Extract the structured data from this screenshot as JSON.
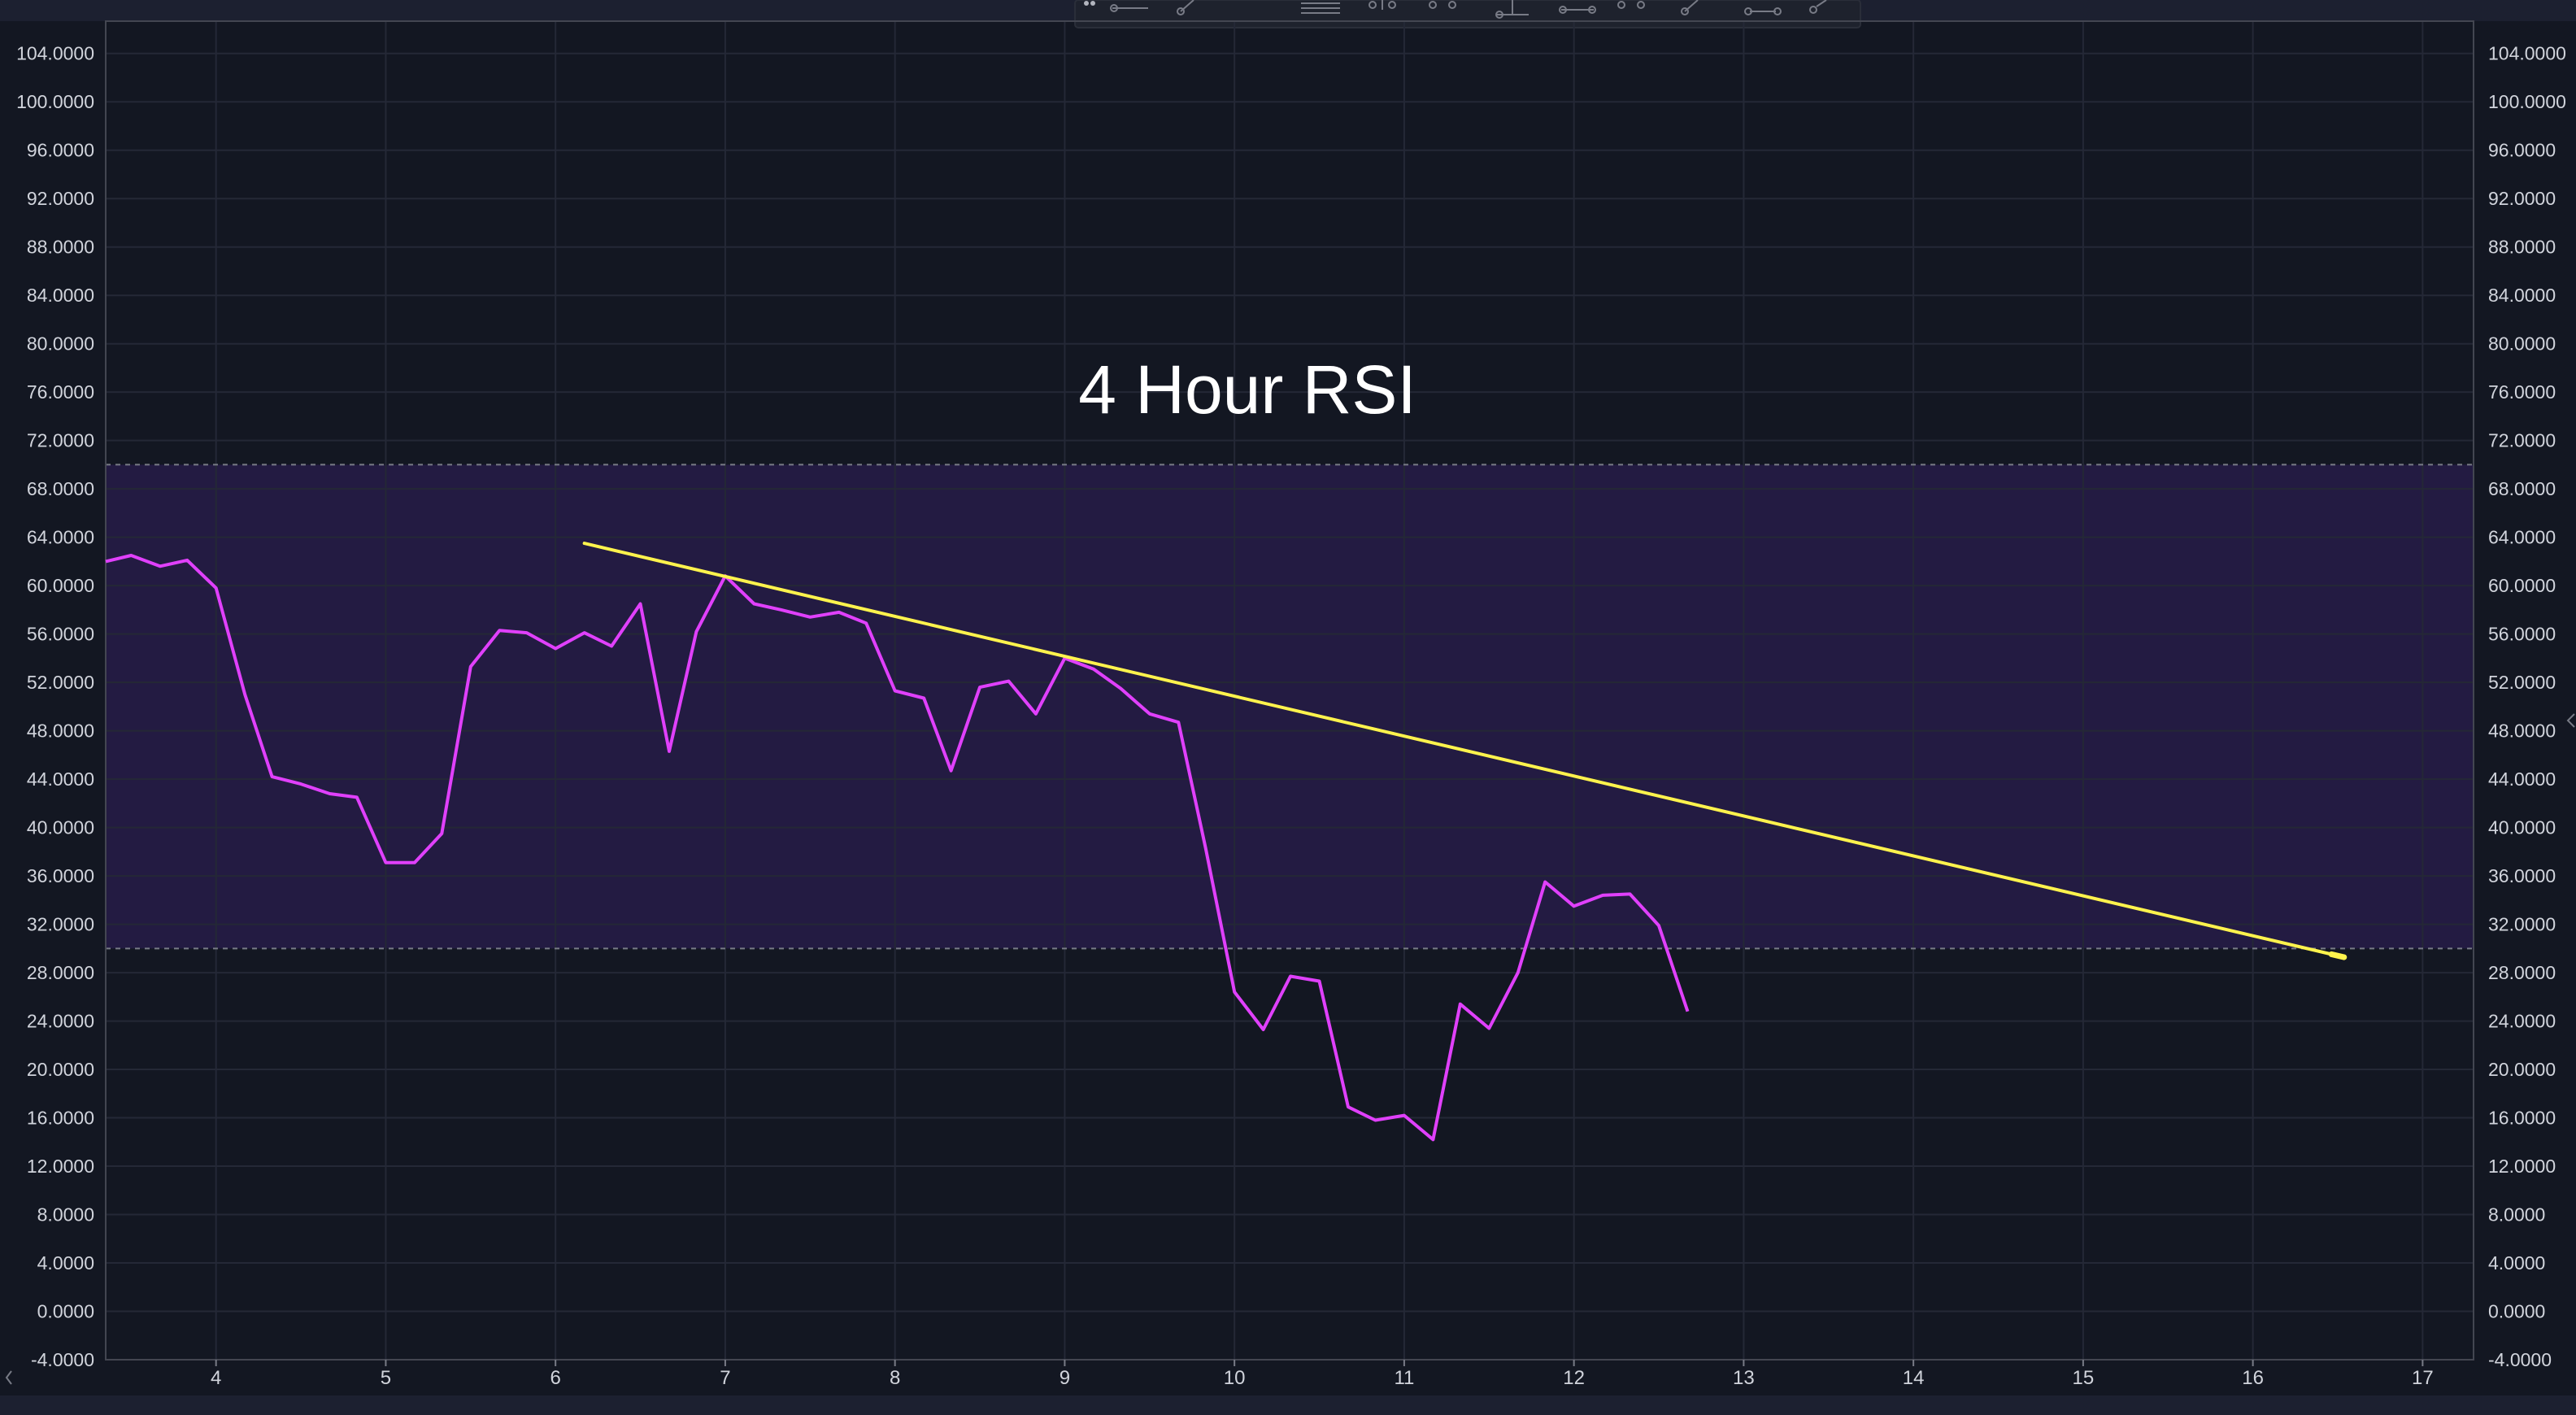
{
  "chart_data": {
    "type": "line",
    "title": "4 Hour RSI",
    "xlabel": "",
    "ylabel": "",
    "xlim": [
      3.35,
      17.3
    ],
    "ylim": [
      -4,
      106
    ],
    "x_ticks": [
      4,
      5,
      6,
      7,
      8,
      9,
      10,
      11,
      12,
      13,
      14,
      15,
      16,
      17
    ],
    "y_ticks": [
      -4,
      0,
      4,
      8,
      12,
      16,
      20,
      24,
      28,
      32,
      36,
      40,
      44,
      48,
      52,
      56,
      60,
      64,
      68,
      72,
      76,
      80,
      84,
      88,
      92,
      96,
      100,
      104
    ],
    "y_tick_labels": [
      "-4.0000",
      "0.0000",
      "4.0000",
      "8.0000",
      "12.0000",
      "16.0000",
      "20.0000",
      "24.0000",
      "28.0000",
      "32.0000",
      "36.0000",
      "40.0000",
      "44.0000",
      "48.0000",
      "52.0000",
      "56.0000",
      "60.0000",
      "64.0000",
      "68.0000",
      "72.0000",
      "76.0000",
      "80.0000",
      "84.0000",
      "88.0000",
      "92.0000",
      "96.0000",
      "100.0000",
      "104.0000"
    ],
    "grid": true,
    "bands": [
      {
        "from": 30,
        "to": 70,
        "fill": "#2a1d4d"
      }
    ],
    "levels": [
      30,
      70
    ],
    "series": [
      {
        "color": "#e040fb",
        "x": [
          3.35,
          3.5,
          3.67,
          3.83,
          4.0,
          4.17,
          4.33,
          4.5,
          4.67,
          4.83,
          5.0,
          5.17,
          5.33,
          5.5,
          5.67,
          5.83,
          6.0,
          6.17,
          6.33,
          6.5,
          6.67,
          6.83,
          7.0,
          7.17,
          7.33,
          7.5,
          7.67,
          7.83,
          8.0,
          8.17,
          8.33,
          8.5,
          8.67,
          8.83,
          9.0,
          9.17,
          9.33,
          9.5,
          9.67,
          9.83,
          10.0,
          10.17,
          10.33,
          10.5,
          10.67,
          10.83,
          11.0,
          11.17,
          11.33,
          11.5,
          11.67,
          11.83,
          12.0,
          12.17,
          12.33,
          12.5,
          12.67
        ],
        "y": [
          62.0,
          62.5,
          61.6,
          62.1,
          59.8,
          51.0,
          44.2,
          43.6,
          42.8,
          42.5,
          37.1,
          37.1,
          39.5,
          53.3,
          56.3,
          56.1,
          54.8,
          56.1,
          55.0,
          58.5,
          46.3,
          56.2,
          60.8,
          58.5,
          58.0,
          57.4,
          57.8,
          56.9,
          51.3,
          50.7,
          44.7,
          51.6,
          52.1,
          49.4,
          54.0,
          53.1,
          51.5,
          49.4,
          48.7,
          38.3,
          26.4,
          23.3,
          27.7,
          27.3,
          16.9,
          15.8,
          16.2,
          14.2,
          25.4,
          23.4,
          28.0,
          35.5,
          33.5,
          34.4,
          34.5,
          31.9,
          24.8
        ]
      }
    ],
    "trendline": {
      "color": "#fff34d",
      "x": [
        6.17,
        16.5
      ],
      "y": [
        63.5,
        29.4
      ]
    }
  }
}
